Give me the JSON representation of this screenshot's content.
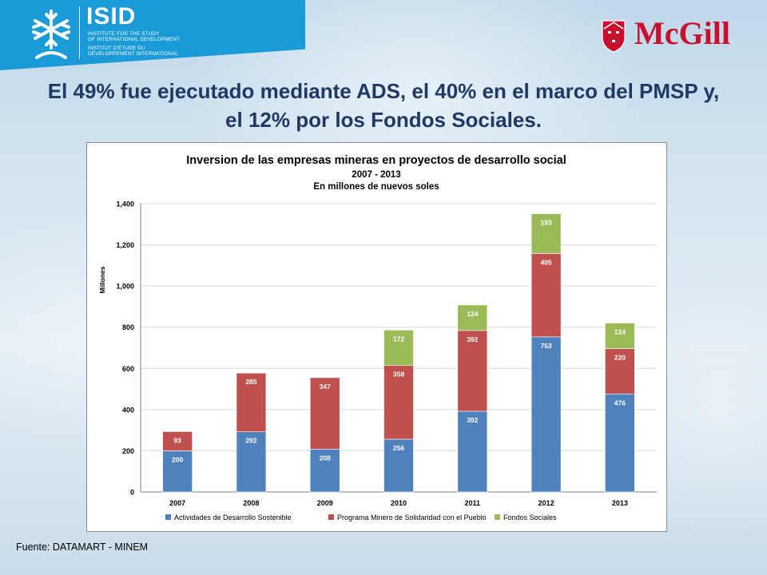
{
  "header": {
    "isid_logo": {
      "name": "ISID",
      "lines": [
        "INSTITUTE FOR THE STUDY",
        "OF INTERNATIONAL DEVELOPMENT",
        "INSTITUT D'ÉTUDE DU",
        "DÉVELOPPEMENT INTERNATIONAL"
      ],
      "icon": "snowflake-tree-icon",
      "color": "#1a9ad6"
    },
    "mcgill_logo": {
      "name": "McGill",
      "icon": "mcgill-crest-icon",
      "color": "#c8102e"
    }
  },
  "slide_title": {
    "line1": "El 49% fue ejecutado mediante ADS, el 40% en el marco del PMSP y,",
    "line2": "el 12% por los Fondos Sociales."
  },
  "chart_data": {
    "type": "bar",
    "stacked": true,
    "title": "Inversion de las empresas mineras en proyectos de desarrollo social",
    "subtitle_lines": [
      "2007 - 2013",
      "En millones de nuevos soles"
    ],
    "xlabel": "",
    "ylabel": "Millones",
    "ylim": [
      0,
      1400
    ],
    "yticks": [
      0,
      200,
      400,
      600,
      800,
      1000,
      1200,
      1400
    ],
    "ytick_labels": [
      "0",
      "200",
      "400",
      "600",
      "800",
      "1,000",
      "1,200",
      "1,400"
    ],
    "grid": true,
    "legend_position": "bottom",
    "categories": [
      "2007",
      "2008",
      "2009",
      "2010",
      "2011",
      "2012",
      "2013"
    ],
    "series": [
      {
        "name": "Actividades de Desarrollo Sostenible",
        "color": "#4f81bd",
        "values": [
          200,
          292,
          208,
          256,
          392,
          753,
          476
        ],
        "labels": [
          "200",
          "292",
          "",
          "256",
          "392",
          "753",
          "476"
        ]
      },
      {
        "name": "Programa Minero de Solidaridad con el Pueblo",
        "color": "#c0504d",
        "values": [
          93,
          285,
          347,
          358,
          392,
          405,
          220
        ],
        "labels": [
          "93",
          "285",
          "347",
          "358",
          "392",
          "405",
          "220"
        ]
      },
      {
        "name": "Fondos Sociales",
        "color": "#9bbb59",
        "values": [
          0,
          0,
          0,
          172,
          124,
          193,
          124
        ],
        "labels": [
          "",
          "",
          "",
          "172",
          "124",
          "193",
          "124"
        ]
      }
    ],
    "extra_labels": [
      {
        "category": "2009",
        "series": 0,
        "text": "208"
      }
    ]
  },
  "footer": {
    "source": "Fuente: DATAMART - MINEM"
  }
}
